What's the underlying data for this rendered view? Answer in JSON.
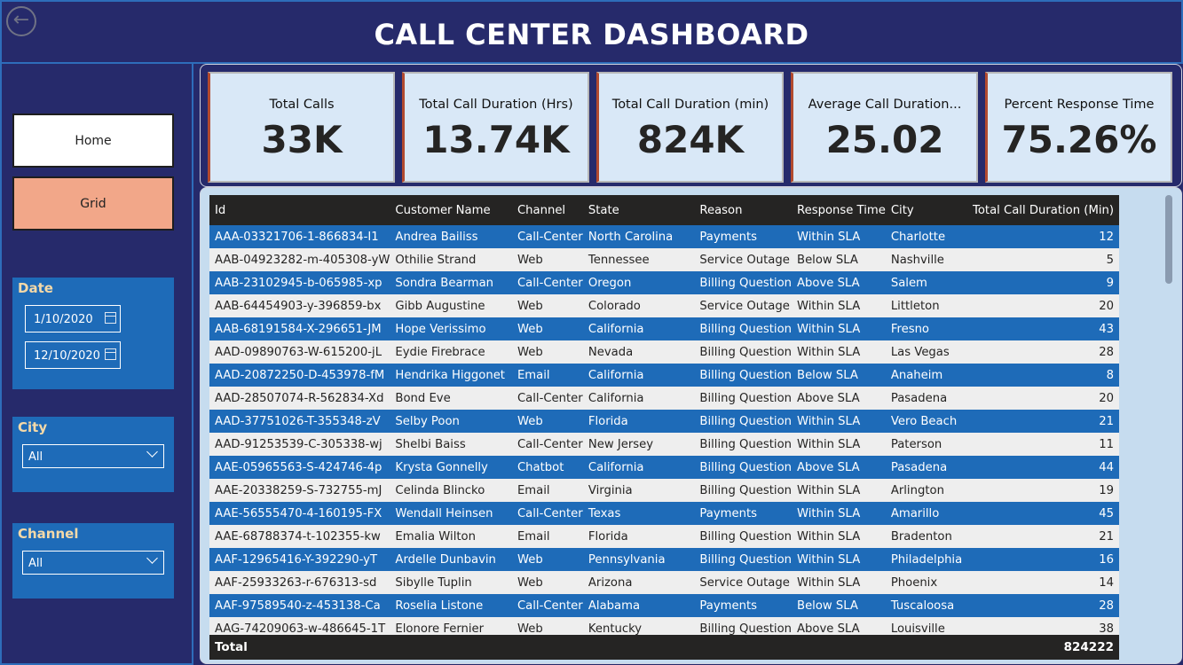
{
  "header": {
    "title": "CALL CENTER DASHBOARD",
    "back_icon": "back-arrow-icon"
  },
  "nav": {
    "home": "Home",
    "grid": "Grid"
  },
  "filters": {
    "date": {
      "label": "Date",
      "start": "1/10/2020",
      "end": "12/10/2020"
    },
    "city": {
      "label": "City",
      "value": "All"
    },
    "channel": {
      "label": "Channel",
      "value": "All"
    }
  },
  "kpis": [
    {
      "label": "Total Calls",
      "value": "33K"
    },
    {
      "label": "Total Call Duration (Hrs)",
      "value": "13.74K"
    },
    {
      "label": "Total Call Duration (min)",
      "value": "824K"
    },
    {
      "label": "Average Call Duration...",
      "value": "25.02"
    },
    {
      "label": "Percent Response Time",
      "value": "75.26%"
    }
  ],
  "table": {
    "columns": [
      "Id",
      "Customer Name",
      "Channel",
      "State",
      "Reason",
      "Response Time",
      "City",
      "Total Call Duration (Min)"
    ],
    "rows": [
      [
        "AAA-03321706-1-866834-I1",
        "Andrea Bailiss",
        "Call-Center",
        "North Carolina",
        "Payments",
        "Within SLA",
        "Charlotte",
        "12"
      ],
      [
        "AAB-04923282-m-405308-yW",
        "Othilie Strand",
        "Web",
        "Tennessee",
        "Service Outage",
        "Below SLA",
        "Nashville",
        "5"
      ],
      [
        "AAB-23102945-b-065985-xp",
        "Sondra Bearman",
        "Call-Center",
        "Oregon",
        "Billing Question",
        "Above SLA",
        "Salem",
        "9"
      ],
      [
        "AAB-64454903-y-396859-bx",
        "Gibb Augustine",
        "Web",
        "Colorado",
        "Service Outage",
        "Within SLA",
        "Littleton",
        "20"
      ],
      [
        "AAB-68191584-X-296651-JM",
        "Hope Verissimo",
        "Web",
        "California",
        "Billing Question",
        "Within SLA",
        "Fresno",
        "43"
      ],
      [
        "AAD-09890763-W-615200-jL",
        "Eydie Firebrace",
        "Web",
        "Nevada",
        "Billing Question",
        "Within SLA",
        "Las Vegas",
        "28"
      ],
      [
        "AAD-20872250-D-453978-fM",
        "Hendrika Higgonet",
        "Email",
        "California",
        "Billing Question",
        "Below SLA",
        "Anaheim",
        "8"
      ],
      [
        "AAD-28507074-R-562834-Xd",
        "Bond Eve",
        "Call-Center",
        "California",
        "Billing Question",
        "Above SLA",
        "Pasadena",
        "20"
      ],
      [
        "AAD-37751026-T-355348-zV",
        "Selby Poon",
        "Web",
        "Florida",
        "Billing Question",
        "Within SLA",
        "Vero Beach",
        "21"
      ],
      [
        "AAD-91253539-C-305338-wj",
        "Shelbi Baiss",
        "Call-Center",
        "New Jersey",
        "Billing Question",
        "Within SLA",
        "Paterson",
        "11"
      ],
      [
        "AAE-05965563-S-424746-4p",
        "Krysta Gonnelly",
        "Chatbot",
        "California",
        "Billing Question",
        "Above SLA",
        "Pasadena",
        "44"
      ],
      [
        "AAE-20338259-S-732755-mJ",
        "Celinda Blincko",
        "Email",
        "Virginia",
        "Billing Question",
        "Within SLA",
        "Arlington",
        "19"
      ],
      [
        "AAE-56555470-4-160195-FX",
        "Wendall Heinsen",
        "Call-Center",
        "Texas",
        "Payments",
        "Within SLA",
        "Amarillo",
        "45"
      ],
      [
        "AAE-68788374-t-102355-kw",
        "Emalia Wilton",
        "Email",
        "Florida",
        "Billing Question",
        "Within SLA",
        "Bradenton",
        "21"
      ],
      [
        "AAF-12965416-Y-392290-yT",
        "Ardelle Dunbavin",
        "Web",
        "Pennsylvania",
        "Billing Question",
        "Within SLA",
        "Philadelphia",
        "16"
      ],
      [
        "AAF-25933263-r-676313-sd",
        "Sibylle Tuplin",
        "Web",
        "Arizona",
        "Service Outage",
        "Within SLA",
        "Phoenix",
        "14"
      ],
      [
        "AAF-97589540-z-453138-Ca",
        "Roselia Listone",
        "Call-Center",
        "Alabama",
        "Payments",
        "Below SLA",
        "Tuscaloosa",
        "28"
      ],
      [
        "AAG-74209063-w-486645-1T",
        "Elonore Fernier",
        "Web",
        "Kentucky",
        "Billing Question",
        "Above SLA",
        "Louisville",
        "38"
      ]
    ],
    "total_label": "Total",
    "total_value": "824222"
  },
  "colors": {
    "header_bg": "#262a6b",
    "row_blue": "#1e6bb8",
    "accent": "#b24a2f",
    "card_bg": "#d9e8f7"
  }
}
